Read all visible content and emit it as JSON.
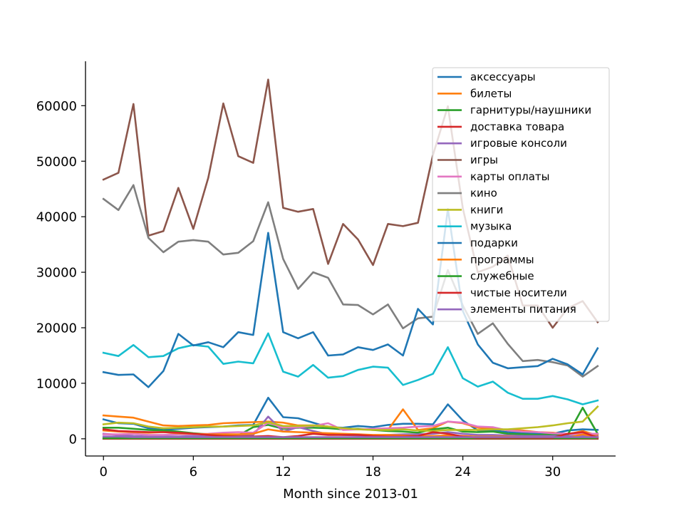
{
  "chart_data": {
    "type": "line",
    "title": "",
    "xlabel": "Month since 2013-01",
    "ylabel": "",
    "xlim": [
      -1.2,
      34.2
    ],
    "ylim": [
      -3100,
      68000
    ],
    "xticks": [
      0,
      6,
      12,
      18,
      24,
      30
    ],
    "yticks": [
      0,
      10000,
      20000,
      30000,
      40000,
      50000,
      60000
    ],
    "grid": false,
    "legend_position": "upper-right",
    "x": [
      0,
      1,
      2,
      3,
      4,
      5,
      6,
      7,
      8,
      9,
      10,
      11,
      12,
      13,
      14,
      15,
      16,
      17,
      18,
      19,
      20,
      21,
      22,
      23,
      24,
      25,
      26,
      27,
      28,
      29,
      30,
      31,
      32,
      33
    ],
    "series": [
      {
        "name": "аксессуары",
        "color": "#1f77b4",
        "values": [
          3500,
          2800,
          2700,
          1900,
          1600,
          1800,
          2000,
          2100,
          2200,
          2400,
          2500,
          7400,
          3900,
          3700,
          2900,
          2100,
          2000,
          2300,
          2100,
          2500,
          2700,
          2700,
          2600,
          6200,
          3300,
          1500,
          1500,
          1200,
          1000,
          900,
          900,
          1500,
          1700,
          1600
        ]
      },
      {
        "name": "билеты",
        "color": "#ff7f0e",
        "values": [
          4200,
          4000,
          3800,
          3100,
          2400,
          2300,
          2400,
          2500,
          2800,
          2900,
          3000,
          3100,
          2900,
          2400,
          2400,
          2200,
          1700,
          1700,
          1700,
          1600,
          5300,
          1600,
          1900,
          3100,
          2800,
          2000,
          1800,
          1600,
          1500,
          1200,
          1100,
          800,
          1400,
          600
        ]
      },
      {
        "name": "гарнитуры/наушники",
        "color": "#2ca02c",
        "values": [
          2000,
          2000,
          1800,
          1600,
          1500,
          1300,
          1000,
          800,
          700,
          600,
          2100,
          2500,
          1800,
          2000,
          2000,
          1900,
          1700,
          1800,
          1600,
          1400,
          1300,
          1100,
          1700,
          2000,
          1300,
          1200,
          1300,
          900,
          800,
          700,
          800,
          700,
          5600,
          900
        ]
      },
      {
        "name": "доставка товара",
        "color": "#d62728",
        "values": [
          0,
          0,
          0,
          0,
          0,
          0,
          0,
          0,
          0,
          0,
          0,
          0,
          0,
          0,
          0,
          0,
          0,
          0,
          0,
          0,
          0,
          0,
          0,
          0,
          0,
          0,
          0,
          0,
          0,
          0,
          0,
          0,
          0,
          0
        ]
      },
      {
        "name": "игровые консоли",
        "color": "#9467bd",
        "values": [
          900,
          700,
          500,
          400,
          400,
          400,
          500,
          400,
          400,
          500,
          700,
          4000,
          1300,
          2100,
          1400,
          800,
          700,
          600,
          600,
          700,
          800,
          800,
          900,
          1200,
          900,
          700,
          700,
          600,
          500,
          500,
          500,
          500,
          600,
          400
        ]
      },
      {
        "name": "игры",
        "color": "#8c564b",
        "values": [
          46700,
          47900,
          60300,
          36600,
          37400,
          45200,
          37800,
          47000,
          60400,
          50900,
          49700,
          64700,
          41600,
          40900,
          41400,
          31500,
          38700,
          35900,
          31300,
          38700,
          38300,
          38900,
          51100,
          59900,
          41500,
          30000,
          31000,
          33000,
          24000,
          24000,
          20000,
          23500,
          24800,
          21000
        ]
      },
      {
        "name": "карты оплаты",
        "color": "#e377c2",
        "values": [
          800,
          800,
          900,
          700,
          700,
          800,
          800,
          900,
          1100,
          1200,
          1100,
          2900,
          2000,
          2100,
          2300,
          2800,
          1600,
          1700,
          1800,
          1900,
          2000,
          2200,
          2300,
          3100,
          2900,
          2200,
          2100,
          1500,
          1300,
          1200,
          1000,
          900,
          900,
          900
        ]
      },
      {
        "name": "кино",
        "color": "#7f7f7f",
        "values": [
          43200,
          41200,
          45700,
          36200,
          33600,
          35500,
          35800,
          35500,
          33200,
          33500,
          35600,
          42600,
          32400,
          27000,
          30000,
          29000,
          24200,
          24100,
          22400,
          24200,
          19900,
          21700,
          22000,
          30400,
          24000,
          18900,
          20800,
          17100,
          14000,
          14200,
          13800,
          13200,
          11200,
          13100
        ]
      },
      {
        "name": "книги",
        "color": "#bcbd22",
        "values": [
          2600,
          2900,
          2800,
          2200,
          1900,
          2000,
          2100,
          2200,
          2200,
          2300,
          2400,
          3000,
          2300,
          2300,
          2400,
          2200,
          1900,
          1700,
          1600,
          1600,
          1700,
          1500,
          1400,
          1600,
          1600,
          1600,
          1700,
          1700,
          1900,
          2100,
          2400,
          2800,
          3100,
          5800
        ]
      },
      {
        "name": "музыка",
        "color": "#17becf",
        "values": [
          15500,
          14900,
          16900,
          14700,
          14900,
          16300,
          16900,
          16600,
          13500,
          13900,
          13600,
          19000,
          12100,
          11200,
          13300,
          11000,
          11300,
          12400,
          13000,
          12800,
          9700,
          10600,
          11700,
          16500,
          10900,
          9400,
          10300,
          8300,
          7200,
          7200,
          7700,
          7100,
          6200,
          6900
        ]
      },
      {
        "name": "подарки",
        "color": "#1f77b4",
        "values": [
          12000,
          11500,
          11600,
          9300,
          12200,
          18900,
          16800,
          17400,
          16500,
          19200,
          18700,
          37100,
          19200,
          18100,
          19200,
          15000,
          15200,
          16500,
          16000,
          17000,
          15000,
          23400,
          20600,
          41400,
          23000,
          17000,
          13700,
          12700,
          12900,
          13100,
          14400,
          13400,
          11600,
          16300
        ]
      },
      {
        "name": "программы",
        "color": "#ff7f0e",
        "values": [
          1500,
          1300,
          1200,
          1100,
          1200,
          1000,
          900,
          800,
          800,
          800,
          900,
          1700,
          1300,
          1200,
          1100,
          1000,
          900,
          800,
          700,
          700,
          600,
          500,
          500,
          600,
          500,
          400,
          400,
          400,
          300,
          300,
          300,
          200,
          800,
          300
        ]
      },
      {
        "name": "служебные",
        "color": "#2ca02c",
        "values": [
          100,
          100,
          100,
          100,
          100,
          100,
          100,
          100,
          100,
          100,
          100,
          100,
          100,
          100,
          100,
          100,
          100,
          100,
          100,
          100,
          100,
          100,
          100,
          100,
          100,
          100,
          100,
          100,
          100,
          100,
          100,
          100,
          100,
          100
        ]
      },
      {
        "name": "чистые носители",
        "color": "#d62728",
        "values": [
          1700,
          1400,
          1300,
          1200,
          1200,
          1100,
          900,
          700,
          500,
          400,
          400,
          500,
          300,
          500,
          900,
          700,
          700,
          700,
          500,
          400,
          400,
          500,
          1200,
          900,
          400,
          200,
          200,
          200,
          200,
          200,
          200,
          900,
          1200,
          200
        ]
      },
      {
        "name": "элементы питания",
        "color": "#9467bd",
        "values": [
          400,
          400,
          300,
          300,
          300,
          300,
          300,
          300,
          300,
          300,
          300,
          300,
          300,
          300,
          300,
          300,
          300,
          300,
          300,
          300,
          300,
          300,
          300,
          300,
          300,
          300,
          300,
          300,
          300,
          300,
          300,
          300,
          300,
          300
        ]
      }
    ]
  }
}
